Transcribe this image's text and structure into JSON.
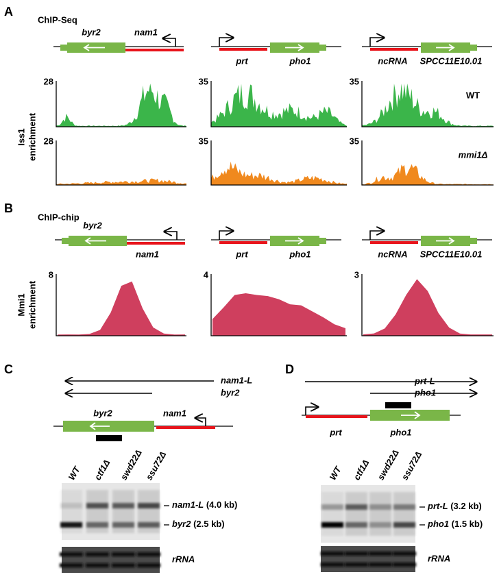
{
  "panel_a": {
    "letter": "A",
    "title": "ChIP-Seq",
    "y_label": [
      "Iss1",
      "enrichment"
    ],
    "loci": [
      [
        "byr2",
        "nam1"
      ],
      [
        "prt",
        "pho1"
      ],
      [
        "ncRNA",
        "SPCC11E10.01"
      ]
    ],
    "rows": [
      {
        "name": "WT",
        "maxima": [
          28,
          35,
          35
        ]
      },
      {
        "name": "mmi1Δ",
        "maxima": [
          28,
          35,
          35
        ]
      }
    ]
  },
  "panel_b": {
    "letter": "B",
    "title": "ChIP-chip",
    "y_label": [
      "Mmi1",
      "enrichment"
    ],
    "loci": [
      [
        "byr2",
        "nam1"
      ],
      [
        "prt",
        "pho1"
      ],
      [
        "ncRNA",
        "SPCC11E10.01"
      ]
    ],
    "maxima": [
      8,
      4,
      3
    ]
  },
  "panel_c": {
    "letter": "C",
    "transcripts": [
      "nam1-L",
      "byr2"
    ],
    "genes": [
      "byr2",
      "nam1"
    ],
    "lanes": [
      "WT",
      "ctf1Δ",
      "swd22Δ",
      "ssu72Δ"
    ],
    "bands": [
      {
        "name": "nam1-L",
        "size": "(4.0 kb)"
      },
      {
        "name": "byr2",
        "size": "(2.5 kb)"
      }
    ],
    "loading": "rRNA"
  },
  "panel_d": {
    "letter": "D",
    "transcripts": [
      "prt-L",
      "pho1"
    ],
    "genes": [
      "prt",
      "pho1"
    ],
    "lanes": [
      "WT",
      "ctf1Δ",
      "swd22Δ",
      "ssu72Δ"
    ],
    "bands": [
      {
        "name": "prt-L",
        "size": "(3.2 kb)"
      },
      {
        "name": "pho1",
        "size": "(1.5 kb)"
      }
    ],
    "loading": "rRNA"
  }
}
